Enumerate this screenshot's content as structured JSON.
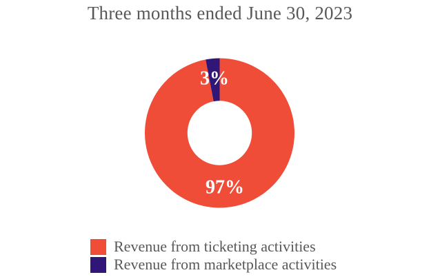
{
  "title": "Three months ended June 30, 2023",
  "theme": {
    "background": "#ffffff",
    "text_color": "#58585a",
    "slice_label_color": "#ffffff",
    "ticketing_color": "#f04d39",
    "marketplace_color": "#2f1677"
  },
  "chart_data": {
    "type": "pie",
    "subtype": "donut",
    "title": "Three months ended June 30, 2023",
    "categories": [
      "Revenue from ticketing activities",
      "Revenue from marketplace activities"
    ],
    "values": [
      97,
      3
    ],
    "unit": "%",
    "labels": [
      "97%",
      "3%"
    ],
    "colors": [
      "#f04d39",
      "#2f1677"
    ],
    "start_angle_deg": 0,
    "direction": "clockwise",
    "inner_radius_ratio": 0.43,
    "grid": false,
    "legend_position": "bottom-left"
  },
  "legend": {
    "items": [
      {
        "label": "Revenue from ticketing activities",
        "color": "#f04d39"
      },
      {
        "label": "Revenue from marketplace activities",
        "color": "#2f1677"
      }
    ]
  }
}
